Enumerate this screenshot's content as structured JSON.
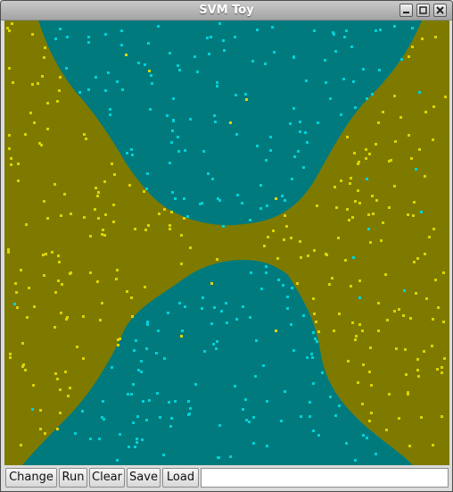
{
  "window": {
    "title": "SVM Toy",
    "controls": {
      "minimize_icon": "minimize-icon",
      "maximize_icon": "maximize-icon",
      "close_icon": "close-icon"
    }
  },
  "colors": {
    "class_a_region": "#7e7a00",
    "class_b_region": "#007a7d",
    "class_a_point": "#dcd400",
    "class_b_point": "#00d2d8"
  },
  "toolbar": {
    "change_label": "Change",
    "run_label": "Run",
    "clear_label": "Clear",
    "save_label": "Save",
    "load_label": "Load",
    "params_value": ""
  }
}
